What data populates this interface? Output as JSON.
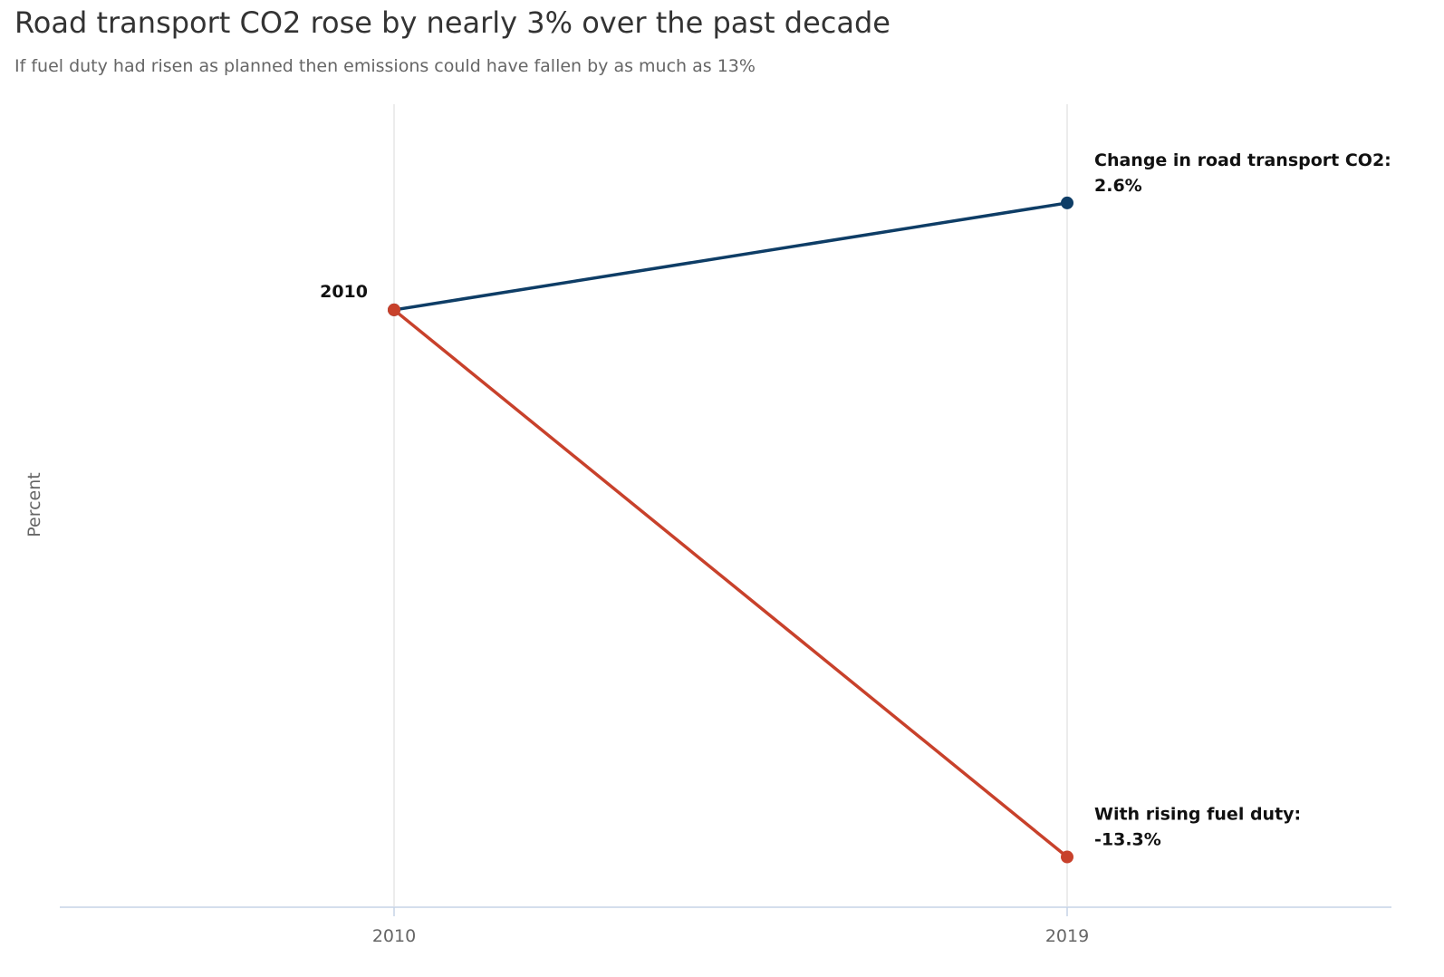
{
  "title": "Road transport CO2 rose by nearly 3% over the past decade",
  "subtitle": "If fuel duty had risen as planned then emissions could have fallen by as much as 13%",
  "chart_data": {
    "type": "line",
    "title": "Road transport CO2 rose by nearly 3% over the past decade",
    "subtitle": "If fuel duty had risen as planned then emissions could have fallen by as much as 13%",
    "xlabel": "",
    "ylabel": "Percent",
    "x": [
      2010,
      2019
    ],
    "xticks": [
      "2010",
      "2019"
    ],
    "ylim": [
      -14.5,
      5.0
    ],
    "grid": "vertical",
    "series": [
      {
        "values": [
          0,
          2.6
        ],
        "color": "#0e3d66",
        "end_label_line1": "Change in road transport CO2:",
        "end_label_line2": "2.6%"
      },
      {
        "values": [
          0,
          -13.3
        ],
        "color": "#c8412b",
        "end_label_line1": "With rising fuel duty:",
        "end_label_line2": "-13.3%"
      }
    ],
    "start_label": "2010"
  }
}
